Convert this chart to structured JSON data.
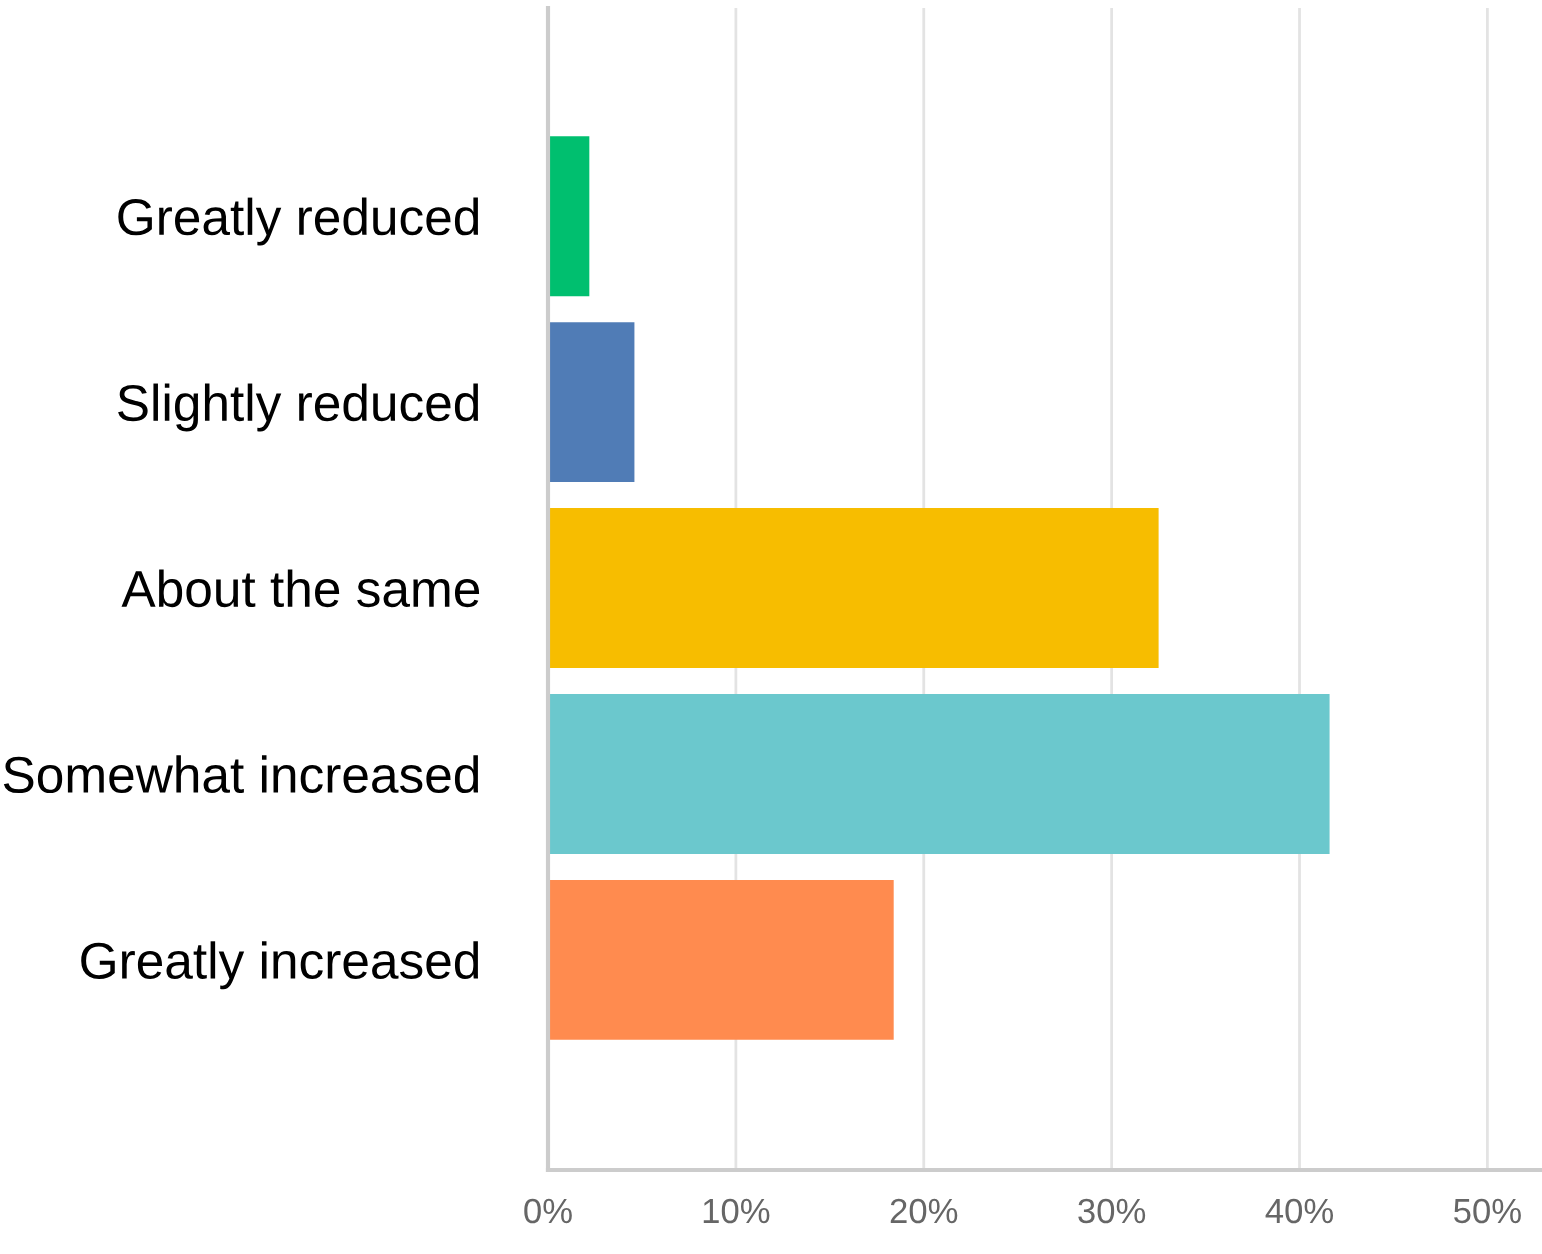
{
  "chart_data": {
    "type": "bar",
    "orientation": "horizontal",
    "categories": [
      "Greatly reduced",
      "Slightly reduced",
      "About the same",
      "Somewhat increased",
      "Greatly increased"
    ],
    "values": [
      2.2,
      4.6,
      32.5,
      41.6,
      18.4
    ],
    "colors": [
      "#00bf6f",
      "#507cb6",
      "#f7bd00",
      "#6bc8cd",
      "#ff8b4f"
    ],
    "xlim": [
      0,
      52.8
    ],
    "xticks": [
      {
        "value": 0,
        "label": "0%"
      },
      {
        "value": 10,
        "label": "10%"
      },
      {
        "value": 20,
        "label": "20%"
      },
      {
        "value": 30,
        "label": "30%"
      },
      {
        "value": 40,
        "label": "40%"
      },
      {
        "value": 50,
        "label": "50%"
      }
    ],
    "grid": "x"
  }
}
